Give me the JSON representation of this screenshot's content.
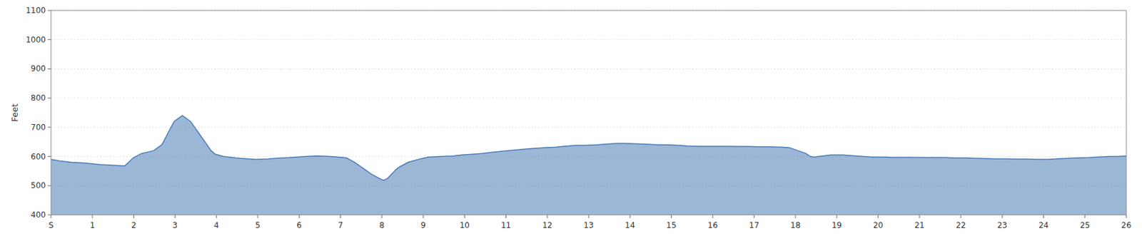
{
  "chart_data": {
    "type": "area",
    "ylabel": "Feet",
    "color": "#4a7ab5",
    "grid": true,
    "xlim": [
      0,
      26.2
    ],
    "xticks": [
      {
        "value": 0,
        "label": "S"
      },
      {
        "value": 1.0077,
        "label": "1"
      },
      {
        "value": 2.0154,
        "label": "2"
      },
      {
        "value": 3.0231,
        "label": "3"
      },
      {
        "value": 4.0308,
        "label": "4"
      },
      {
        "value": 5.0385,
        "label": "5"
      },
      {
        "value": 6.0462,
        "label": "6"
      },
      {
        "value": 7.0538,
        "label": "7"
      },
      {
        "value": 8.0615,
        "label": "8"
      },
      {
        "value": 9.0692,
        "label": "9"
      },
      {
        "value": 10.0769,
        "label": "10"
      },
      {
        "value": 11.0846,
        "label": "11"
      },
      {
        "value": 12.0923,
        "label": "12"
      },
      {
        "value": 13.1,
        "label": "13"
      },
      {
        "value": 14.1077,
        "label": "14"
      },
      {
        "value": 15.1154,
        "label": "15"
      },
      {
        "value": 16.1231,
        "label": "16"
      },
      {
        "value": 17.1308,
        "label": "17"
      },
      {
        "value": 18.1385,
        "label": "18"
      },
      {
        "value": 19.1462,
        "label": "19"
      },
      {
        "value": 20.1538,
        "label": "20"
      },
      {
        "value": 21.1615,
        "label": "21"
      },
      {
        "value": 22.1692,
        "label": "22"
      },
      {
        "value": 23.1769,
        "label": "23"
      },
      {
        "value": 24.1846,
        "label": "24"
      },
      {
        "value": 25.1923,
        "label": "25"
      },
      {
        "value": 26.2,
        "label": "26"
      }
    ],
    "ylim": [
      400,
      1100
    ],
    "yticks": [
      400,
      500,
      600,
      700,
      800,
      900,
      1000,
      1100
    ],
    "x": [
      0.0,
      0.2,
      0.5,
      0.8,
      1.0,
      1.2,
      1.5,
      1.8,
      2.0,
      2.2,
      2.5,
      2.7,
      3.0,
      3.1,
      3.2,
      3.3,
      3.4,
      3.5,
      3.6,
      3.7,
      3.8,
      3.9,
      4.0,
      4.2,
      4.5,
      4.8,
      5.0,
      5.3,
      5.5,
      5.8,
      6.0,
      6.2,
      6.5,
      6.8,
      7.0,
      7.2,
      7.4,
      7.6,
      7.8,
      8.0,
      8.1,
      8.2,
      8.3,
      8.4,
      8.5,
      8.7,
      9.0,
      9.2,
      9.5,
      9.8,
      10.0,
      10.3,
      10.5,
      10.8,
      11.0,
      11.3,
      11.5,
      11.8,
      12.0,
      12.3,
      12.5,
      12.8,
      13.0,
      13.3,
      13.5,
      13.8,
      14.0,
      14.3,
      14.5,
      14.8,
      15.0,
      15.3,
      15.5,
      15.8,
      16.0,
      16.3,
      16.5,
      16.8,
      17.0,
      17.3,
      17.5,
      17.8,
      18.0,
      18.2,
      18.4,
      18.5,
      18.6,
      18.7,
      18.8,
      19.0,
      19.3,
      19.5,
      19.8,
      20.0,
      20.3,
      20.5,
      20.8,
      21.0,
      21.3,
      21.5,
      21.8,
      22.0,
      22.3,
      22.5,
      22.8,
      23.0,
      23.3,
      23.5,
      23.8,
      24.0,
      24.3,
      24.5,
      24.8,
      25.0,
      25.3,
      25.5,
      25.8,
      26.0,
      26.2
    ],
    "values": [
      590,
      585,
      580,
      578,
      575,
      572,
      570,
      568,
      595,
      610,
      620,
      640,
      720,
      730,
      740,
      730,
      720,
      700,
      680,
      660,
      640,
      620,
      608,
      600,
      595,
      592,
      590,
      592,
      594,
      596,
      598,
      600,
      602,
      600,
      598,
      595,
      580,
      560,
      540,
      525,
      518,
      525,
      540,
      555,
      565,
      580,
      592,
      598,
      600,
      602,
      605,
      608,
      610,
      615,
      618,
      622,
      625,
      628,
      630,
      632,
      635,
      638,
      638,
      640,
      642,
      645,
      645,
      643,
      642,
      640,
      640,
      638,
      636,
      635,
      635,
      635,
      635,
      634,
      634,
      633,
      633,
      632,
      630,
      620,
      610,
      600,
      598,
      600,
      602,
      605,
      605,
      603,
      600,
      598,
      598,
      597,
      597,
      597,
      596,
      596,
      596,
      595,
      595,
      594,
      593,
      592,
      592,
      591,
      591,
      590,
      590,
      592,
      594,
      595,
      596,
      598,
      600,
      600,
      602
    ]
  }
}
